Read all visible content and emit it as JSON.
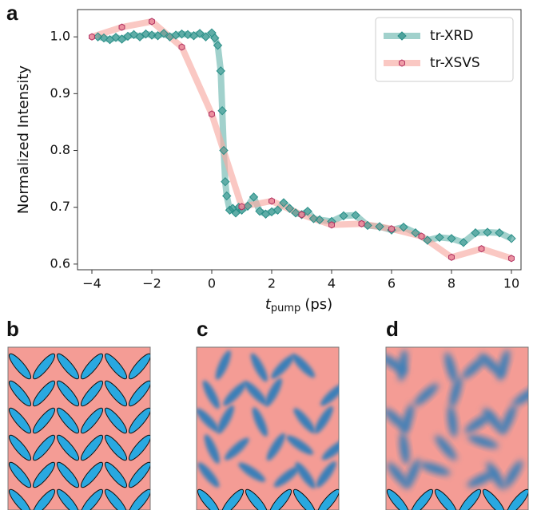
{
  "panel_labels": [
    "a",
    "b",
    "c",
    "d"
  ],
  "chart_data": {
    "type": "line",
    "y_label": "Normalized Intensity",
    "x_label": "t",
    "x_label_subscript": "pump",
    "x_label_unit": "(ps)",
    "xlim": [
      -4.48,
      10.32
    ],
    "ylim": [
      0.59,
      1.048
    ],
    "xticks": [
      {
        "value": -4,
        "label": "−4"
      },
      {
        "value": -2,
        "label": "−2"
      },
      0,
      2,
      4,
      6,
      8,
      10
    ],
    "yticks": [
      0.6,
      0.7,
      0.8,
      0.9,
      {
        "value": 1,
        "label": "1.0"
      }
    ],
    "legend": "upper right",
    "series": [
      {
        "name": "tr-XRD",
        "color": "#2a8f88",
        "line_color": "#6fb8b0",
        "marker": "diamond",
        "x": [
          -3.8,
          -3.6,
          -3.4,
          -3.2,
          -3.0,
          -2.8,
          -2.6,
          -2.4,
          -2.2,
          -2.0,
          -1.8,
          -1.6,
          -1.4,
          -1.2,
          -1.0,
          -0.8,
          -0.6,
          -0.4,
          -0.2,
          0.0,
          0.1,
          0.2,
          0.3,
          0.35,
          0.4,
          0.45,
          0.5,
          0.6,
          0.7,
          0.8,
          0.9,
          1.0,
          1.2,
          1.4,
          1.6,
          1.8,
          2.0,
          2.2,
          2.4,
          2.6,
          2.8,
          3.0,
          3.2,
          3.4,
          3.6,
          4.0,
          4.4,
          4.8,
          5.2,
          5.6,
          6.0,
          6.4,
          6.8,
          7.2,
          7.6,
          8.0,
          8.4,
          8.8,
          9.2,
          9.6,
          10.0
        ],
        "values": [
          1.0,
          0.998,
          0.995,
          0.999,
          0.996,
          1.001,
          1.004,
          1.0,
          1.005,
          1.003,
          1.002,
          1.006,
          1.0,
          1.003,
          1.005,
          1.004,
          1.002,
          1.006,
          1.0,
          1.007,
          0.998,
          0.985,
          0.94,
          0.87,
          0.8,
          0.745,
          0.72,
          0.695,
          0.698,
          0.69,
          0.7,
          0.695,
          0.702,
          0.718,
          0.693,
          0.688,
          0.692,
          0.695,
          0.708,
          0.698,
          0.69,
          0.687,
          0.693,
          0.68,
          0.678,
          0.675,
          0.685,
          0.686,
          0.668,
          0.666,
          0.66,
          0.665,
          0.655,
          0.642,
          0.647,
          0.645,
          0.638,
          0.655,
          0.656,
          0.655,
          0.645
        ]
      },
      {
        "name": "tr-XSVS",
        "color": "#e9899a",
        "line_color": "#f7aaa3",
        "marker": "hexagon",
        "x": [
          -4,
          -3,
          -2,
          -1,
          0,
          1,
          2,
          3,
          4,
          5,
          6,
          7,
          8,
          9,
          10
        ],
        "values": [
          1.0,
          1.017,
          1.027,
          0.982,
          0.864,
          0.701,
          0.711,
          0.687,
          0.669,
          0.671,
          0.662,
          0.649,
          0.612,
          0.627,
          0.61
        ]
      }
    ]
  }
}
